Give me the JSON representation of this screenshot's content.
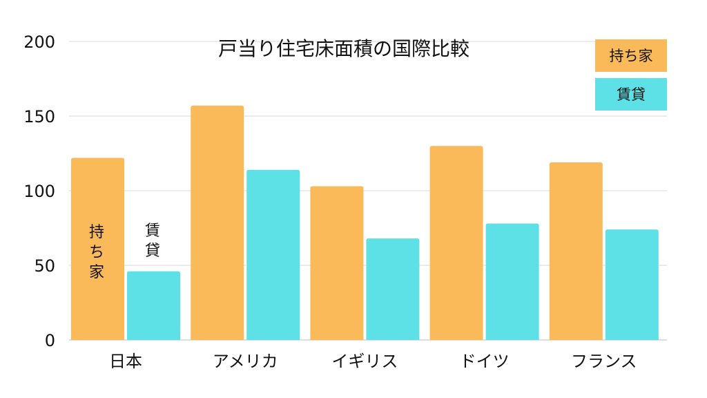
{
  "chart_data": {
    "type": "bar",
    "title": "戸当り住宅床面積の国際比較",
    "xlabel": "",
    "ylabel": "",
    "categories": [
      "日本",
      "アメリカ",
      "イギリス",
      "ドイツ",
      "フランス"
    ],
    "series": [
      {
        "name": "持ち家",
        "values": [
          122,
          157,
          103,
          130,
          119
        ],
        "color": "#FBBA5A"
      },
      {
        "name": "賃貸",
        "values": [
          46,
          114,
          68,
          78,
          74
        ],
        "color": "#5DE0E6"
      }
    ],
    "ylim": [
      0,
      200
    ],
    "yticks": [
      0,
      50,
      100,
      150,
      200
    ],
    "grid": true,
    "legend_position": "top-right",
    "inbar_labels": {
      "owned": [
        "持",
        "ち",
        "家"
      ],
      "rental": [
        "賃",
        "貸"
      ]
    }
  }
}
